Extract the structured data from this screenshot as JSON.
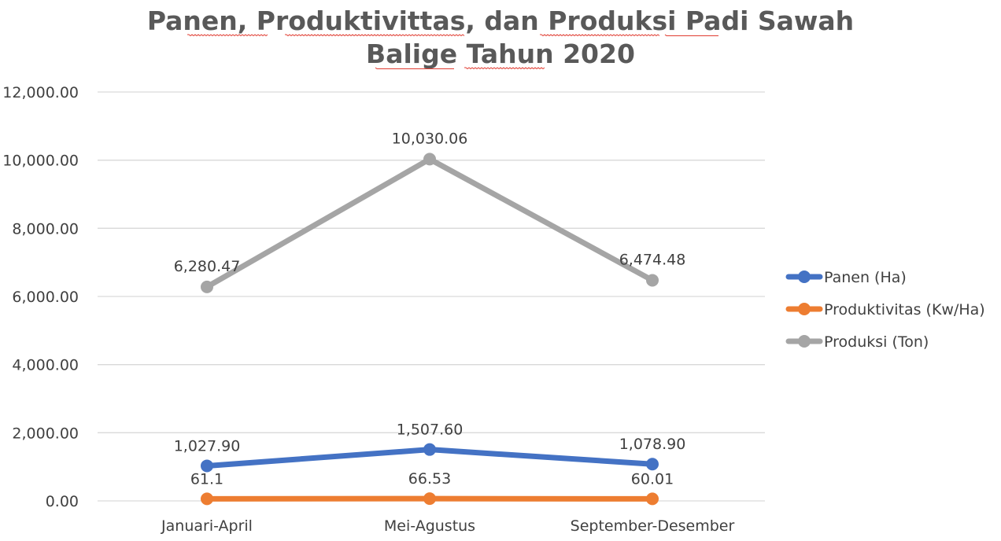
{
  "chart_data": {
    "type": "line",
    "title_lines": [
      "Panen, Produktivittas, dan Produksi Padi Sawah",
      "Balige Tahun 2020"
    ],
    "categories": [
      "Januari-April",
      "Mei-Agustus",
      "September-Desember"
    ],
    "y_ticks": [
      "0.00",
      "2,000.00",
      "4,000.00",
      "6,000.00",
      "8,000.00",
      "10,000.00",
      "12,000.00"
    ],
    "ylim": [
      0,
      12000
    ],
    "grid": true,
    "legend_position": "right",
    "series": [
      {
        "name": "Panen (Ha)",
        "color": "#4472c4",
        "values": [
          1027.9,
          1507.6,
          1078.9
        ],
        "labels": [
          "1,027.90",
          "1,507.60",
          "1,078.90"
        ]
      },
      {
        "name": "Produktivitas (Kw/Ha)",
        "color": "#ed7d31",
        "values": [
          61.1,
          66.53,
          60.01
        ],
        "labels": [
          "61.1",
          "66.53",
          "60.01"
        ]
      },
      {
        "name": "Produksi (Ton)",
        "color": "#a5a5a5",
        "values": [
          6280.47,
          10030.06,
          6474.48
        ],
        "labels": [
          "6,280.47",
          "10,030.06",
          "6,474.48"
        ]
      }
    ]
  }
}
